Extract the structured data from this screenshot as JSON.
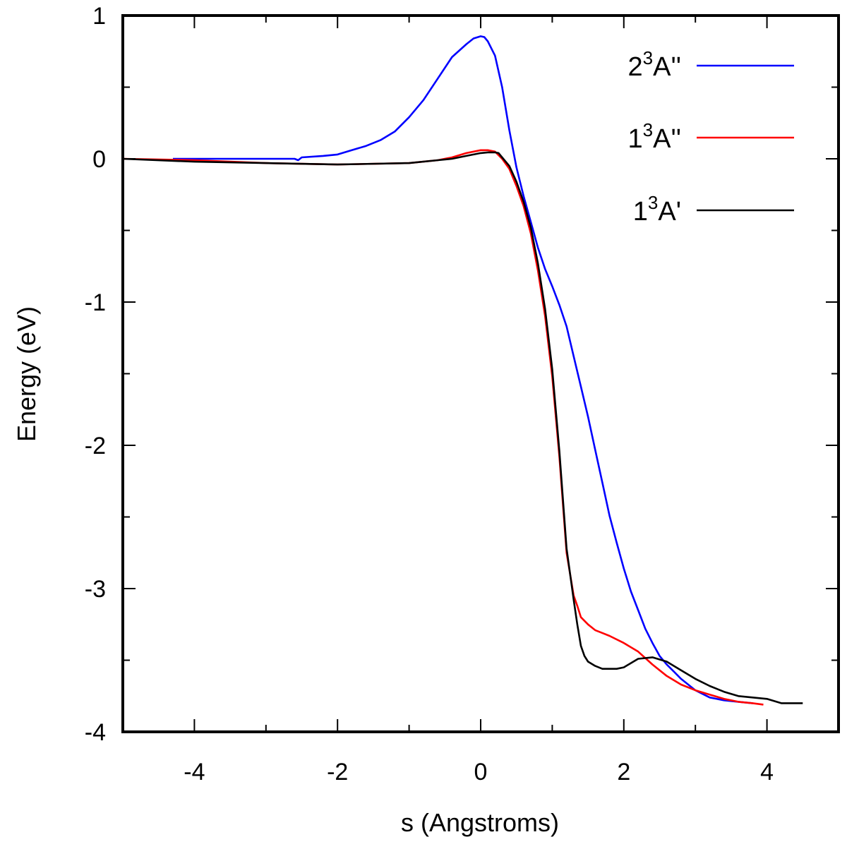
{
  "chart_data": {
    "type": "line",
    "title": "",
    "xlabel": "s (Angstroms)",
    "ylabel": "Energy (eV)",
    "xlim": [
      -5,
      5
    ],
    "ylim": [
      -4,
      1
    ],
    "xticks": [
      -4,
      -2,
      0,
      2,
      4
    ],
    "yticks": [
      1,
      0,
      -1,
      -2,
      -3,
      -4
    ],
    "x_minor_step": 1,
    "y_minor_step": 0.5,
    "grid": false,
    "legend_position": "top-right",
    "series": [
      {
        "name": "2³A''",
        "label_base": "2",
        "label_sup": "3",
        "label_rest": "A''",
        "color": "#0000ff",
        "x": [
          -4.3,
          -3.5,
          -3.0,
          -2.6,
          -2.55,
          -2.5,
          -2.2,
          -2.0,
          -1.8,
          -1.6,
          -1.4,
          -1.2,
          -1.0,
          -0.8,
          -0.6,
          -0.4,
          -0.2,
          -0.1,
          0.0,
          0.05,
          0.1,
          0.2,
          0.3,
          0.4,
          0.5,
          0.6,
          0.7,
          0.8,
          0.9,
          1.0,
          1.1,
          1.2,
          1.3,
          1.4,
          1.5,
          1.6,
          1.7,
          1.8,
          1.9,
          2.0,
          2.1,
          2.2,
          2.3,
          2.4,
          2.5,
          2.6,
          2.7,
          2.8,
          3.0,
          3.2,
          3.4,
          3.6,
          3.8
        ],
        "y": [
          0.0,
          0.0,
          0.0,
          0.0,
          -0.01,
          0.01,
          0.02,
          0.03,
          0.06,
          0.09,
          0.13,
          0.19,
          0.29,
          0.41,
          0.56,
          0.71,
          0.8,
          0.84,
          0.855,
          0.85,
          0.82,
          0.72,
          0.5,
          0.2,
          -0.06,
          -0.26,
          -0.44,
          -0.62,
          -0.77,
          -0.89,
          -1.02,
          -1.17,
          -1.38,
          -1.59,
          -1.8,
          -2.03,
          -2.26,
          -2.49,
          -2.68,
          -2.86,
          -3.02,
          -3.15,
          -3.28,
          -3.38,
          -3.47,
          -3.53,
          -3.58,
          -3.63,
          -3.71,
          -3.76,
          -3.78,
          -3.79,
          -3.8
        ]
      },
      {
        "name": "1³A''",
        "label_base": "1",
        "label_sup": "3",
        "label_rest": "A''",
        "color": "#ff0000",
        "x": [
          -5.0,
          -4.0,
          -3.0,
          -2.0,
          -1.0,
          -0.6,
          -0.4,
          -0.2,
          0.0,
          0.1,
          0.2,
          0.3,
          0.4,
          0.5,
          0.6,
          0.7,
          0.8,
          0.9,
          1.0,
          1.1,
          1.2,
          1.3,
          1.35,
          1.4,
          1.5,
          1.6,
          1.7,
          1.8,
          2.0,
          2.2,
          2.4,
          2.6,
          2.8,
          3.0,
          3.2,
          3.4,
          3.6,
          3.8,
          3.95
        ],
        "y": [
          0.0,
          -0.01,
          -0.03,
          -0.04,
          -0.03,
          -0.01,
          0.01,
          0.04,
          0.06,
          0.06,
          0.05,
          0.0,
          -0.07,
          -0.19,
          -0.33,
          -0.52,
          -0.78,
          -1.1,
          -1.52,
          -2.08,
          -2.75,
          -3.05,
          -3.12,
          -3.2,
          -3.25,
          -3.29,
          -3.31,
          -3.33,
          -3.38,
          -3.44,
          -3.53,
          -3.61,
          -3.67,
          -3.71,
          -3.74,
          -3.77,
          -3.79,
          -3.8,
          -3.81
        ]
      },
      {
        "name": "1³A'",
        "label_base": "1",
        "label_sup": "3",
        "label_rest": "A'",
        "color": "#000000",
        "x": [
          -5.0,
          -4.0,
          -3.0,
          -2.0,
          -1.0,
          -0.6,
          -0.4,
          -0.2,
          0.0,
          0.1,
          0.2,
          0.25,
          0.3,
          0.4,
          0.5,
          0.6,
          0.7,
          0.8,
          0.9,
          1.0,
          1.1,
          1.2,
          1.3,
          1.35,
          1.4,
          1.45,
          1.5,
          1.6,
          1.7,
          1.9,
          2.0,
          2.2,
          2.4,
          2.6,
          2.8,
          3.0,
          3.2,
          3.4,
          3.6,
          3.8,
          4.0,
          4.2,
          4.5
        ],
        "y": [
          0.0,
          -0.02,
          -0.03,
          -0.04,
          -0.03,
          -0.01,
          0.0,
          0.02,
          0.04,
          0.045,
          0.045,
          0.04,
          0.01,
          -0.05,
          -0.16,
          -0.3,
          -0.48,
          -0.73,
          -1.05,
          -1.47,
          -2.04,
          -2.72,
          -3.08,
          -3.25,
          -3.4,
          -3.47,
          -3.51,
          -3.54,
          -3.56,
          -3.56,
          -3.55,
          -3.49,
          -3.48,
          -3.51,
          -3.57,
          -3.63,
          -3.68,
          -3.72,
          -3.75,
          -3.76,
          -3.77,
          -3.8,
          -3.8
        ]
      }
    ]
  }
}
